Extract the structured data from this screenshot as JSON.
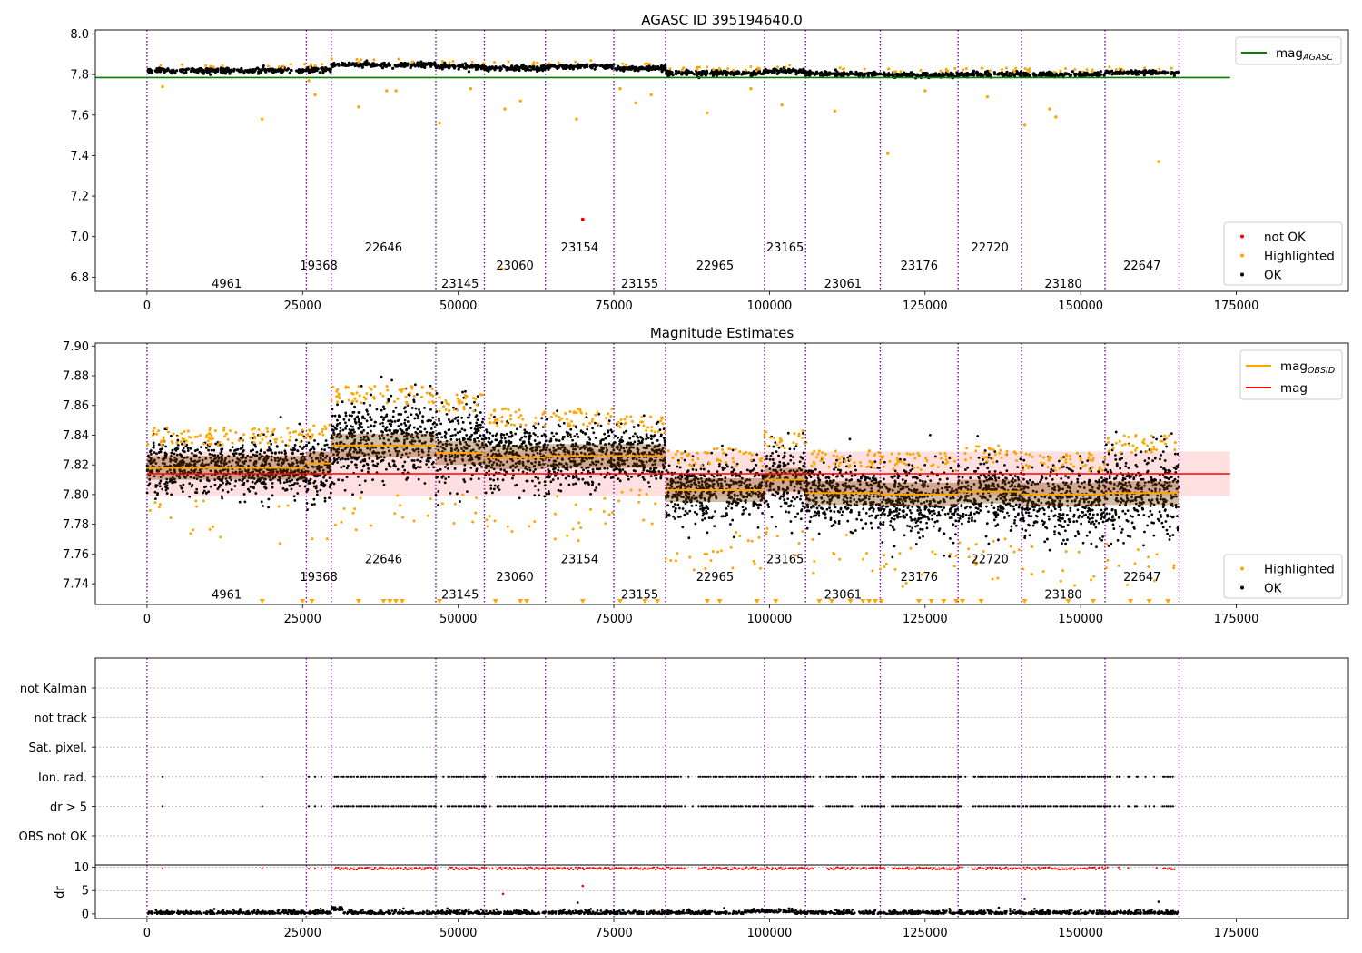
{
  "colors": {
    "ok": "#000000",
    "highlighted": "#ffa500",
    "not_ok": "#ff0000",
    "agasc_line": "#008000",
    "mag_line": "#ff0000",
    "mag_band": "#ffc0c0",
    "obsid_line": "#ffa500",
    "obsid_band": "#7a3f00",
    "boundary": "#7b00a0",
    "grid": "#b0b0b0"
  },
  "chart_data": [
    {
      "type": "scatter",
      "title": "AGASC ID 395194640.0",
      "xlim": [
        -8300,
        193000
      ],
      "ylim": [
        6.73,
        8.02
      ],
      "x_ticks": [
        0,
        25000,
        50000,
        75000,
        100000,
        125000,
        150000,
        175000
      ],
      "y_ticks": [
        6.8,
        7.0,
        7.2,
        7.4,
        7.6,
        7.8,
        8.0
      ],
      "y_tick_labels": [
        "6.8",
        "7.0",
        "7.2",
        "7.4",
        "7.6",
        "7.8",
        "8.0"
      ],
      "agasc_mag": 7.785,
      "legend_top": {
        "position": "top-right",
        "entries": [
          {
            "label": "mag",
            "sub": "AGASC",
            "color": "#008000",
            "kind": "line"
          }
        ]
      },
      "legend_bottom": {
        "position": "bottom-right",
        "entries": [
          {
            "label": "not OK",
            "color": "#ff0000",
            "kind": "dot"
          },
          {
            "label": "Highlighted",
            "color": "#ffa500",
            "kind": "dot"
          },
          {
            "label": "OK",
            "color": "#000000",
            "kind": "dot"
          }
        ]
      },
      "obsid_label_levels_y": [
        6.77,
        6.86,
        6.95
      ],
      "not_ok_points": [
        [
          70000,
          7.085
        ]
      ],
      "highlighted_outliers": [
        [
          2500,
          7.74
        ],
        [
          18500,
          7.58
        ],
        [
          26000,
          7.77
        ],
        [
          27000,
          7.7
        ],
        [
          34000,
          7.64
        ],
        [
          38500,
          7.72
        ],
        [
          40000,
          7.72
        ],
        [
          47000,
          7.56
        ],
        [
          52000,
          7.73
        ],
        [
          57000,
          6.84
        ],
        [
          57500,
          7.63
        ],
        [
          60000,
          7.67
        ],
        [
          69000,
          7.58
        ],
        [
          76000,
          7.73
        ],
        [
          78500,
          7.66
        ],
        [
          81000,
          7.7
        ],
        [
          90000,
          7.61
        ],
        [
          97000,
          7.73
        ],
        [
          102000,
          7.65
        ],
        [
          110500,
          7.62
        ],
        [
          119000,
          7.41
        ],
        [
          125000,
          7.72
        ],
        [
          135000,
          7.69
        ],
        [
          141000,
          7.55
        ],
        [
          145000,
          7.63
        ],
        [
          146000,
          7.59
        ],
        [
          162500,
          7.37
        ]
      ]
    },
    {
      "type": "scatter",
      "title": "Magnitude Estimates",
      "xlim": [
        -8300,
        193000
      ],
      "ylim": [
        7.726,
        7.902
      ],
      "x_ticks": [
        0,
        25000,
        50000,
        75000,
        100000,
        125000,
        150000,
        175000
      ],
      "y_ticks": [
        7.74,
        7.76,
        7.78,
        7.8,
        7.82,
        7.84,
        7.86,
        7.88,
        7.9
      ],
      "y_tick_labels": [
        "7.74",
        "7.76",
        "7.78",
        "7.80",
        "7.82",
        "7.84",
        "7.86",
        "7.88",
        "7.90"
      ],
      "mag": 7.814,
      "mag_band": [
        7.799,
        7.829
      ],
      "legend_top": {
        "position": "top-right",
        "entries": [
          {
            "label": "mag",
            "sub": "OBSID",
            "color": "#ffa500",
            "kind": "line"
          },
          {
            "label": "mag",
            "sub": "",
            "color": "#ff0000",
            "kind": "line"
          }
        ]
      },
      "legend_bottom": {
        "position": "bottom-right",
        "entries": [
          {
            "label": "Highlighted",
            "color": "#ffa500",
            "kind": "dot"
          },
          {
            "label": "OK",
            "color": "#000000",
            "kind": "dot"
          }
        ]
      },
      "obsid_label_levels_y": [
        7.733,
        7.745,
        7.757
      ],
      "obsid_mags": [
        7.818,
        7.821,
        7.833,
        7.828,
        7.825,
        7.826,
        7.826,
        7.803,
        7.81,
        7.801,
        7.8,
        7.802,
        7.8,
        7.801
      ],
      "obsid_spread": [
        [
          7.8,
          7.837
        ],
        [
          7.795,
          7.84
        ],
        [
          7.81,
          7.865
        ],
        [
          7.805,
          7.86
        ],
        [
          7.803,
          7.85
        ],
        [
          7.803,
          7.85
        ],
        [
          7.808,
          7.845
        ],
        [
          7.783,
          7.823
        ],
        [
          7.785,
          7.835
        ],
        [
          7.778,
          7.822
        ],
        [
          7.77,
          7.82
        ],
        [
          7.775,
          7.825
        ],
        [
          7.77,
          7.82
        ],
        [
          7.772,
          7.832
        ]
      ],
      "clipped_marker_x": [
        18500,
        25000,
        26500,
        34000,
        38000,
        39000,
        40000,
        41000,
        47000,
        56000,
        60000,
        61000,
        70000,
        76000,
        80000,
        82000,
        90000,
        92000,
        98000,
        101000,
        108000,
        110000,
        113000,
        115000,
        116000,
        117000,
        118000,
        124000,
        126000,
        128000,
        130000,
        131000,
        134000,
        141000,
        148000,
        152000,
        158000,
        161000,
        164000
      ]
    },
    {
      "type": "scatter",
      "xlim": [
        -8300,
        193000
      ],
      "x_ticks": [
        0,
        25000,
        50000,
        75000,
        100000,
        125000,
        150000,
        175000
      ],
      "flag_rows": [
        "not Kalman",
        "not track",
        "Sat. pixel.",
        "Ion. rad.",
        "dr > 5",
        "OBS not OK"
      ],
      "dr_axis": {
        "label": "dr",
        "ylim": [
          -1,
          10.5
        ],
        "ticks": [
          0,
          5,
          10
        ]
      },
      "flag_sparse_x": [
        2500,
        18500,
        26000,
        27000,
        28000
      ],
      "flag_dense_range": [
        30000,
        165000
      ],
      "flag_gaps": [
        [
          46500,
          48000
        ],
        [
          54500,
          56000
        ],
        [
          86000,
          88500
        ],
        [
          107000,
          109000
        ],
        [
          113500,
          114500
        ],
        [
          118500,
          119500
        ],
        [
          131000,
          132500
        ],
        [
          154500,
          163000
        ]
      ]
    }
  ],
  "x_tick_labels": [
    "0",
    "25000",
    "50000",
    "75000",
    "100000",
    "125000",
    "150000",
    "175000"
  ],
  "obsids": [
    {
      "id": "4961",
      "start": 0,
      "end": 25600,
      "level": 0
    },
    {
      "id": "19368",
      "start": 25600,
      "end": 29600,
      "level": 1
    },
    {
      "id": "22646",
      "start": 29600,
      "end": 46400,
      "level": 2
    },
    {
      "id": "23145",
      "start": 46400,
      "end": 54200,
      "level": 0
    },
    {
      "id": "23060",
      "start": 54200,
      "end": 64000,
      "level": 1
    },
    {
      "id": "23154",
      "start": 64000,
      "end": 75000,
      "level": 2
    },
    {
      "id": "23155",
      "start": 75000,
      "end": 83300,
      "level": 0
    },
    {
      "id": "22965",
      "start": 83300,
      "end": 99200,
      "level": 1
    },
    {
      "id": "23165",
      "start": 99200,
      "end": 105800,
      "level": 2
    },
    {
      "id": "23061",
      "start": 105800,
      "end": 117800,
      "level": 0
    },
    {
      "id": "23176",
      "start": 117800,
      "end": 130300,
      "level": 1
    },
    {
      "id": "22720",
      "start": 130300,
      "end": 140500,
      "level": 2
    },
    {
      "id": "23180",
      "start": 140500,
      "end": 153900,
      "level": 0
    },
    {
      "id": "22647",
      "start": 153900,
      "end": 165800,
      "level": 1
    }
  ],
  "obsid_boundaries": [
    0,
    25600,
    29600,
    46400,
    54200,
    64000,
    75000,
    83300,
    99200,
    105800,
    117800,
    130300,
    140500,
    153900,
    165800
  ],
  "obsid_base_mags": [
    7.82,
    7.822,
    7.848,
    7.839,
    7.832,
    7.839,
    7.83,
    7.807,
    7.817,
    7.803,
    7.798,
    7.801,
    7.8,
    7.81
  ]
}
